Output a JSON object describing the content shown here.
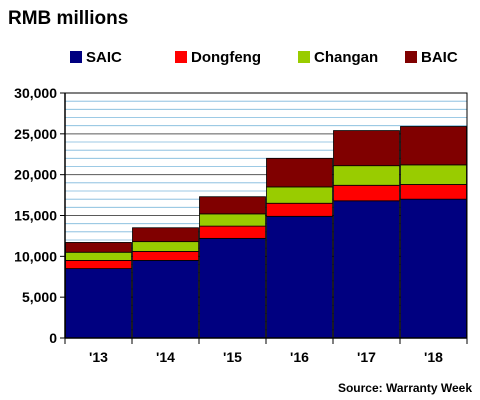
{
  "chart_data": {
    "type": "bar",
    "stacked": true,
    "title": "RMB millions",
    "source": "Source: Warranty Week",
    "categories": [
      "'13",
      "'14",
      "'15",
      "'16",
      "'17",
      "'18"
    ],
    "series": [
      {
        "name": "SAIC",
        "color": "#000080",
        "values": [
          8500,
          9500,
          12200,
          14900,
          16800,
          17000
        ]
      },
      {
        "name": "Dongfeng",
        "color": "#ff0000",
        "values": [
          1000,
          1100,
          1500,
          1600,
          1900,
          1800
        ]
      },
      {
        "name": "Changan",
        "color": "#99cc00",
        "values": [
          1000,
          1200,
          1500,
          2000,
          2400,
          2400
        ]
      },
      {
        "name": "BAIC",
        "color": "#800000",
        "values": [
          1200,
          1700,
          2100,
          3500,
          4300,
          4700
        ]
      }
    ],
    "ylim": [
      0,
      30000
    ],
    "yticks": [
      0,
      5000,
      10000,
      15000,
      20000,
      25000,
      30000
    ],
    "ytick_labels": [
      "0",
      "5,000",
      "10,000",
      "15,000",
      "20,000",
      "25,000",
      "30,000"
    ],
    "grid": true,
    "legend_position": "top"
  }
}
